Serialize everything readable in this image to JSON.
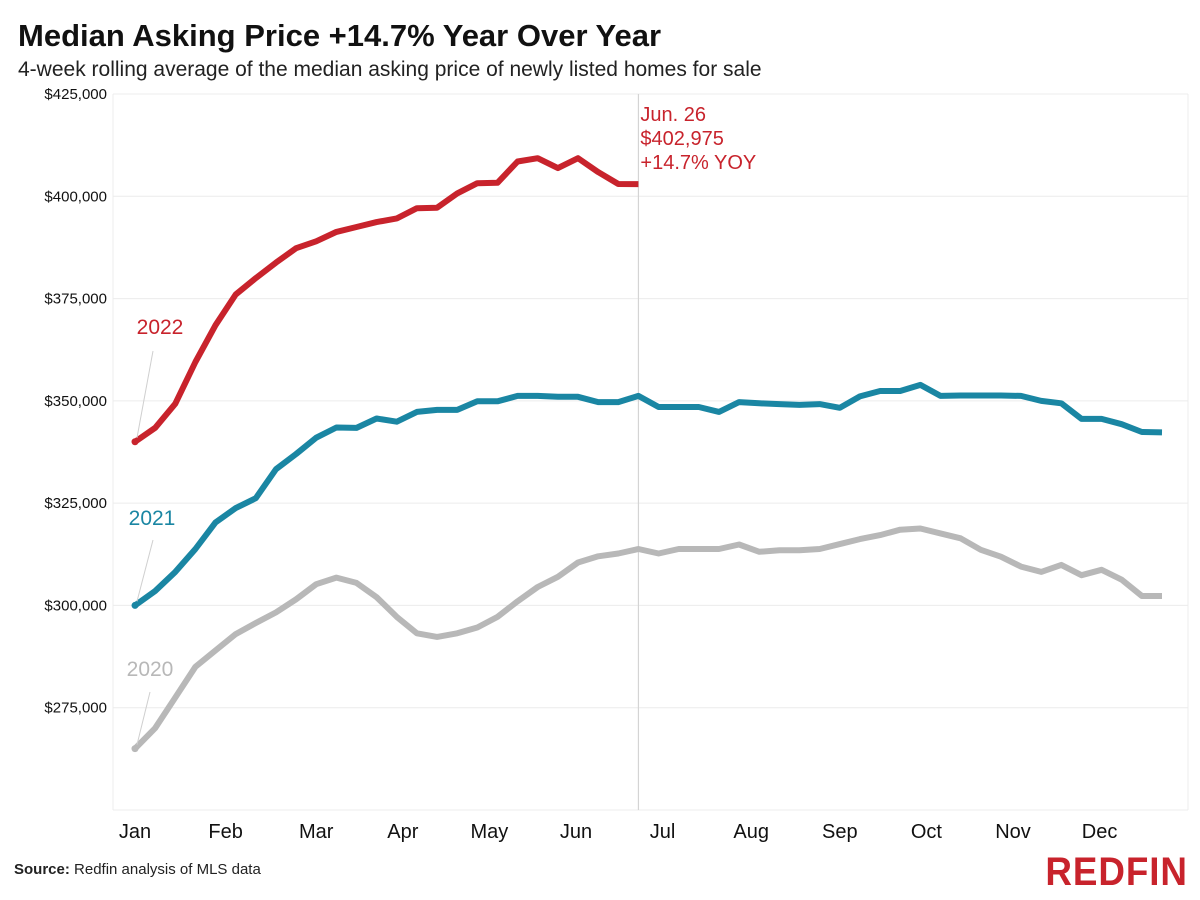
{
  "title": "Median Asking Price +14.7% Year Over Year",
  "subtitle": "4-week rolling average of the median asking price of newly listed homes for sale",
  "source": {
    "label": "Source:",
    "text": "Redfin analysis of MLS data"
  },
  "brand": {
    "name": "REDFIN",
    "color": "#c8232c"
  },
  "chart_data": {
    "type": "line",
    "title": "Median Asking Price +14.7% Year Over Year",
    "subtitle": "4-week rolling average of the median asking price of newly listed homes for sale",
    "xlabel": "",
    "ylabel": "",
    "x_unit": "week of year",
    "x_range": [
      1,
      52
    ],
    "ylim": [
      250000,
      425000
    ],
    "yticks": [
      275000,
      300000,
      325000,
      350000,
      375000,
      400000,
      425000
    ],
    "ytick_labels": [
      "$275,000",
      "$300,000",
      "$325,000",
      "$350,000",
      "$375,000",
      "$400,000",
      "$425,000"
    ],
    "x_months": [
      {
        "label": "Jan",
        "week": 1
      },
      {
        "label": "Feb",
        "week": 5.5
      },
      {
        "label": "Mar",
        "week": 10
      },
      {
        "label": "Apr",
        "week": 14.3
      },
      {
        "label": "May",
        "week": 18.6
      },
      {
        "label": "Jun",
        "week": 22.9
      },
      {
        "label": "Jul",
        "week": 27.2
      },
      {
        "label": "Aug",
        "week": 31.6
      },
      {
        "label": "Sep",
        "week": 36
      },
      {
        "label": "Oct",
        "week": 40.3
      },
      {
        "label": "Nov",
        "week": 44.6
      },
      {
        "label": "Dec",
        "week": 48.9
      }
    ],
    "grid": true,
    "legend": "direct labels",
    "series": [
      {
        "name": "2020",
        "color": "#b8b8b8",
        "x": [
          1,
          2,
          3,
          4,
          5,
          6,
          7,
          8,
          9,
          10,
          11,
          12,
          13,
          14,
          15,
          16,
          17,
          18,
          19,
          20,
          21,
          22,
          23,
          24,
          25,
          26,
          27,
          28,
          29,
          30,
          31,
          32,
          33,
          34,
          35,
          36,
          37,
          38,
          39,
          40,
          41,
          42,
          43,
          44,
          45,
          46,
          47,
          48,
          49,
          50,
          51,
          52
        ],
        "values": [
          265000,
          270000,
          277500,
          285000,
          289000,
          293000,
          295700,
          298300,
          301500,
          305200,
          306800,
          305500,
          302000,
          297200,
          293200,
          292300,
          293200,
          294600,
          297200,
          301000,
          304500,
          307000,
          310500,
          312000,
          312700,
          313800,
          312700,
          313800,
          313800,
          313800,
          314900,
          313100,
          313500,
          313500,
          313800,
          315000,
          316200,
          317200,
          318500,
          318800,
          317600,
          316400,
          313600,
          311900,
          309500,
          308200,
          309900,
          307400,
          308700,
          306300,
          302300,
          302300
        ]
      },
      {
        "name": "2021",
        "color": "#1a86a3",
        "x": [
          1,
          2,
          3,
          4,
          5,
          6,
          7,
          8,
          9,
          10,
          11,
          12,
          13,
          14,
          15,
          16,
          17,
          18,
          19,
          20,
          21,
          22,
          23,
          24,
          25,
          26,
          27,
          28,
          29,
          30,
          31,
          32,
          33,
          34,
          35,
          36,
          37,
          38,
          39,
          40,
          41,
          42,
          43,
          44,
          45,
          46,
          47,
          48,
          49,
          50,
          51,
          52
        ],
        "values": [
          300000,
          303500,
          308200,
          313800,
          320300,
          323800,
          326200,
          333300,
          337000,
          341000,
          343500,
          343400,
          345700,
          344900,
          347300,
          347800,
          347800,
          349900,
          349900,
          351200,
          351200,
          351000,
          351000,
          349700,
          349700,
          351200,
          348500,
          348500,
          348500,
          347300,
          349700,
          349400,
          349200,
          349000,
          349200,
          348300,
          351100,
          352400,
          352400,
          353900,
          351200,
          351300,
          351300,
          351300,
          351200,
          350000,
          349400,
          345600,
          345600,
          344300,
          342400,
          342300
        ]
      },
      {
        "name": "2022",
        "color": "#c8232c",
        "x": [
          1,
          2,
          3,
          4,
          5,
          6,
          7,
          8,
          9,
          10,
          11,
          12,
          13,
          14,
          15,
          16,
          17,
          18,
          19,
          20,
          21,
          22,
          23,
          24,
          25,
          26
        ],
        "values": [
          340000,
          343400,
          349300,
          359500,
          368500,
          376000,
          380000,
          383800,
          387300,
          389000,
          391300,
          392500,
          393700,
          394600,
          397100,
          397200,
          400700,
          403200,
          403300,
          408500,
          409300,
          406900,
          409300,
          405900,
          403000,
          402975
        ]
      }
    ],
    "annotations": [
      {
        "lines": [
          "Jun. 26",
          "$402,975",
          "+14.7% YOY"
        ],
        "week": 26,
        "value": 402975
      }
    ]
  }
}
